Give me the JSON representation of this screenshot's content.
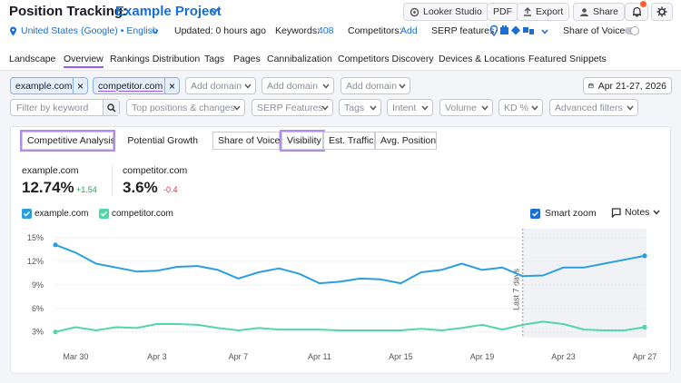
{
  "header": {
    "title": "Position Tracking:",
    "project": "Example Project",
    "buttons": {
      "looker": "Looker Studio",
      "pdf": "PDF",
      "export": "Export",
      "share": "Share"
    }
  },
  "info": {
    "location": "United States (Google) • English",
    "updated": "Updated: 0 hours ago",
    "keywords_label": "Keywords:",
    "keywords_value": "408",
    "competitors_label": "Competitors:",
    "competitors_action": "Add",
    "serp_label": "SERP features",
    "share_of_voice": "Share of Voice"
  },
  "tabs": [
    "Landscape",
    "Overview",
    "Rankings Distribution",
    "Tags",
    "Pages",
    "Cannibalization",
    "Competitors Discovery",
    "Devices & Locations",
    "Featured Snippets"
  ],
  "domains": {
    "d1": "example.com",
    "d2": "competitor.com",
    "add": "Add domain",
    "date_range": "Apr 21-27, 2026"
  },
  "filters": {
    "keyword_placeholder": "Filter by keyword",
    "positions": "Top positions & changes",
    "serp": "SERP Features",
    "tags": "Tags",
    "intent": "Intent",
    "volume": "Volume",
    "kd": "KD %",
    "advanced": "Advanced filters"
  },
  "panel": {
    "competitive": "Competitive Analysis",
    "growth": "Potential Growth",
    "metrics": [
      "Share of Voice",
      "Visibility",
      "Est. Traffic",
      "Avg. Position"
    ],
    "smart_zoom": "Smart zoom",
    "notes": "Notes"
  },
  "summary": {
    "d1_name": "example.com",
    "d1_value": "12.74%",
    "d1_delta": "+1.54",
    "d2_name": "competitor.com",
    "d2_value": "3.6%",
    "d2_delta": "-0.4"
  },
  "colors": {
    "example": "#2a9fe0",
    "competitor": "#53d6a8",
    "accent": "#1a6fd6",
    "highlight": "#b18cf0"
  },
  "chart_data": {
    "type": "line",
    "x": [
      "Mar 29",
      "Mar 30",
      "Mar 31",
      "Apr 1",
      "Apr 2",
      "Apr 3",
      "Apr 4",
      "Apr 5",
      "Apr 6",
      "Apr 7",
      "Apr 8",
      "Apr 9",
      "Apr 10",
      "Apr 11",
      "Apr 12",
      "Apr 13",
      "Apr 14",
      "Apr 15",
      "Apr 16",
      "Apr 17",
      "Apr 18",
      "Apr 19",
      "Apr 20",
      "Apr 21",
      "Apr 22",
      "Apr 23",
      "Apr 24",
      "Apr 25",
      "Apr 26",
      "Apr 27"
    ],
    "x_ticks": [
      "Mar 30",
      "Apr 3",
      "Apr 7",
      "Apr 11",
      "Apr 15",
      "Apr 19",
      "Apr 23",
      "Apr 27"
    ],
    "series": [
      {
        "name": "example.com",
        "values": [
          14.1,
          13.1,
          11.7,
          11.2,
          10.7,
          10.8,
          11.3,
          11.4,
          10.9,
          9.8,
          10.6,
          11.1,
          10.4,
          9.2,
          9.4,
          9.8,
          9.7,
          9.2,
          10.6,
          10.9,
          11.7,
          10.9,
          11.2,
          10.1,
          10.2,
          11.2,
          11.2,
          11.7,
          12.2,
          12.7
        ]
      },
      {
        "name": "competitor.com",
        "values": [
          3.0,
          3.6,
          3.2,
          3.6,
          3.5,
          4.0,
          4.0,
          3.9,
          3.5,
          3.2,
          3.5,
          3.3,
          3.3,
          3.3,
          3.2,
          3.2,
          3.2,
          3.2,
          3.4,
          3.2,
          3.5,
          3.9,
          3.3,
          3.9,
          4.3,
          4.0,
          3.3,
          3.2,
          3.2,
          3.6
        ]
      }
    ],
    "y_ticks": [
      "15%",
      "12%",
      "9%",
      "6%",
      "3%"
    ],
    "ylim": [
      2.5,
      15
    ],
    "annotation": "Last 7 days",
    "grid": true,
    "legend": "top-left"
  }
}
